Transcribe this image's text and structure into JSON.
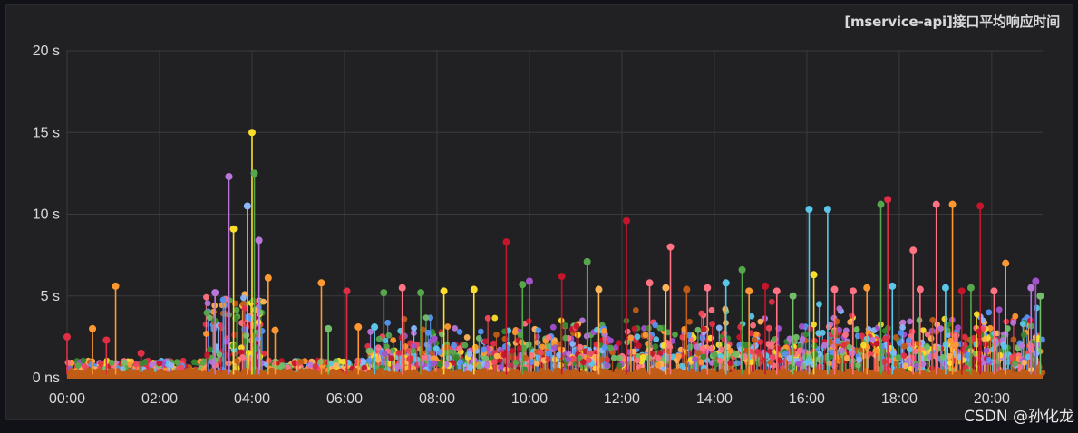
{
  "chart_data": {
    "type": "scatter",
    "title": "[mservice-api]接口平均响应时间",
    "x_ticks": [
      "00:00",
      "02:00",
      "04:00",
      "06:00",
      "08:00",
      "10:00",
      "12:00",
      "14:00",
      "16:00",
      "18:00",
      "20:00"
    ],
    "y_ticks": [
      "0 ns",
      "5 s",
      "10 s",
      "15 s",
      "20 s"
    ],
    "ylim": [
      0,
      20
    ],
    "xlim_hours": [
      0,
      21.1
    ],
    "grid": true,
    "series_colors": [
      "#f2495c",
      "#ff9830",
      "#fade2a",
      "#73bf69",
      "#5794f2",
      "#b877d9",
      "#8ab8ff",
      "#56a64b",
      "#5ac6e8",
      "#e02f44",
      "#ff7383",
      "#a352cc",
      "#37872d",
      "#c4162a",
      "#c15c17",
      "#ffb357"
    ],
    "spikes": [
      {
        "x": 0.0,
        "y": 2.5,
        "color": "#e02f44"
      },
      {
        "x": 0.55,
        "y": 3.0,
        "color": "#ff9830"
      },
      {
        "x": 0.85,
        "y": 2.3,
        "color": "#e02f44"
      },
      {
        "x": 1.05,
        "y": 5.6,
        "color": "#ff9830"
      },
      {
        "x": 1.6,
        "y": 1.5,
        "color": "#e02f44"
      },
      {
        "x": 3.2,
        "y": 5.2,
        "color": "#b877d9"
      },
      {
        "x": 3.5,
        "y": 12.3,
        "color": "#b877d9"
      },
      {
        "x": 3.6,
        "y": 9.1,
        "color": "#fade2a"
      },
      {
        "x": 3.9,
        "y": 10.5,
        "color": "#8ab8ff"
      },
      {
        "x": 4.0,
        "y": 15.0,
        "color": "#fade2a"
      },
      {
        "x": 4.05,
        "y": 12.5,
        "color": "#56a64b"
      },
      {
        "x": 4.15,
        "y": 8.4,
        "color": "#b877d9"
      },
      {
        "x": 4.35,
        "y": 6.1,
        "color": "#ff9830"
      },
      {
        "x": 4.5,
        "y": 2.9,
        "color": "#ff9830"
      },
      {
        "x": 5.5,
        "y": 5.8,
        "color": "#ff9830"
      },
      {
        "x": 5.65,
        "y": 3.0,
        "color": "#73bf69"
      },
      {
        "x": 6.05,
        "y": 5.3,
        "color": "#e02f44"
      },
      {
        "x": 6.3,
        "y": 3.1,
        "color": "#ff9830"
      },
      {
        "x": 6.65,
        "y": 3.1,
        "color": "#5ac6e8"
      },
      {
        "x": 6.85,
        "y": 5.2,
        "color": "#56a64b"
      },
      {
        "x": 7.25,
        "y": 5.5,
        "color": "#ff7383"
      },
      {
        "x": 7.65,
        "y": 5.2,
        "color": "#56a64b"
      },
      {
        "x": 8.15,
        "y": 5.3,
        "color": "#fade2a"
      },
      {
        "x": 8.8,
        "y": 5.4,
        "color": "#fade2a"
      },
      {
        "x": 9.5,
        "y": 8.3,
        "color": "#c4162a"
      },
      {
        "x": 9.85,
        "y": 5.7,
        "color": "#56a64b"
      },
      {
        "x": 10.0,
        "y": 5.9,
        "color": "#a352cc"
      },
      {
        "x": 10.7,
        "y": 6.2,
        "color": "#c4162a"
      },
      {
        "x": 11.25,
        "y": 7.1,
        "color": "#56a64b"
      },
      {
        "x": 11.5,
        "y": 5.4,
        "color": "#ffb357"
      },
      {
        "x": 12.1,
        "y": 9.6,
        "color": "#c4162a"
      },
      {
        "x": 12.6,
        "y": 5.8,
        "color": "#ff7383"
      },
      {
        "x": 12.95,
        "y": 5.5,
        "color": "#ffb357"
      },
      {
        "x": 13.05,
        "y": 8.0,
        "color": "#ff7383"
      },
      {
        "x": 13.4,
        "y": 5.4,
        "color": "#c15c17"
      },
      {
        "x": 13.85,
        "y": 5.5,
        "color": "#ff7383"
      },
      {
        "x": 14.25,
        "y": 5.8,
        "color": "#5ac6e8"
      },
      {
        "x": 14.6,
        "y": 6.6,
        "color": "#56a64b"
      },
      {
        "x": 14.75,
        "y": 5.3,
        "color": "#ff9830"
      },
      {
        "x": 15.1,
        "y": 5.6,
        "color": "#c4162a"
      },
      {
        "x": 15.35,
        "y": 5.3,
        "color": "#ff7383"
      },
      {
        "x": 15.7,
        "y": 5.0,
        "color": "#73bf69"
      },
      {
        "x": 16.05,
        "y": 10.3,
        "color": "#5ac6e8"
      },
      {
        "x": 16.15,
        "y": 6.3,
        "color": "#fade2a"
      },
      {
        "x": 16.45,
        "y": 10.3,
        "color": "#5ac6e8"
      },
      {
        "x": 16.6,
        "y": 5.4,
        "color": "#ff7383"
      },
      {
        "x": 17.0,
        "y": 5.3,
        "color": "#ff7383"
      },
      {
        "x": 17.3,
        "y": 5.5,
        "color": "#ff9830"
      },
      {
        "x": 17.6,
        "y": 10.6,
        "color": "#56a64b"
      },
      {
        "x": 17.75,
        "y": 10.9,
        "color": "#e02f44"
      },
      {
        "x": 17.85,
        "y": 5.6,
        "color": "#5ac6e8"
      },
      {
        "x": 18.3,
        "y": 7.8,
        "color": "#ff7383"
      },
      {
        "x": 18.45,
        "y": 5.4,
        "color": "#ff7383"
      },
      {
        "x": 18.8,
        "y": 10.6,
        "color": "#ff7383"
      },
      {
        "x": 19.0,
        "y": 5.5,
        "color": "#5ac6e8"
      },
      {
        "x": 19.15,
        "y": 10.6,
        "color": "#ff9830"
      },
      {
        "x": 19.35,
        "y": 5.3,
        "color": "#c4162a"
      },
      {
        "x": 19.55,
        "y": 5.5,
        "color": "#56a64b"
      },
      {
        "x": 19.75,
        "y": 10.5,
        "color": "#c4162a"
      },
      {
        "x": 20.05,
        "y": 5.3,
        "color": "#ff7383"
      },
      {
        "x": 20.3,
        "y": 7.0,
        "color": "#ff9830"
      },
      {
        "x": 20.85,
        "y": 5.5,
        "color": "#b877d9"
      },
      {
        "x": 20.95,
        "y": 5.9,
        "color": "#a352cc"
      },
      {
        "x": 21.05,
        "y": 5.0,
        "color": "#73bf69"
      }
    ],
    "baseline_color": "#c15c17"
  },
  "watermark": "CSDN @孙化龙"
}
